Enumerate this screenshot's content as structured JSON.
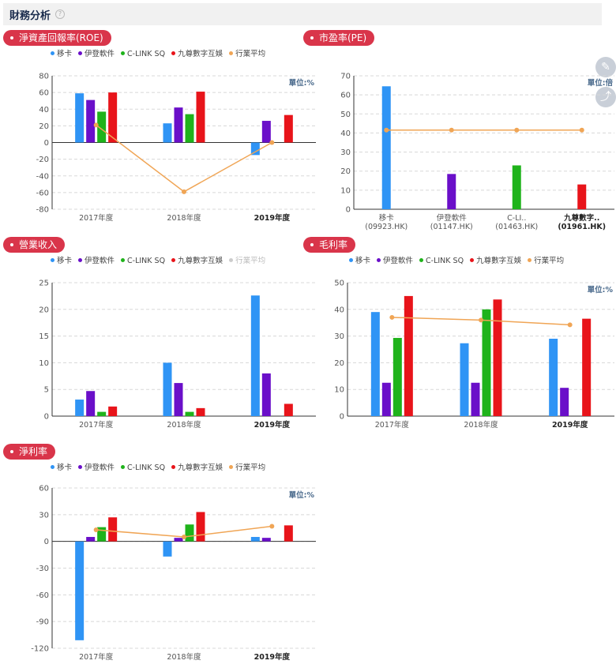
{
  "header": {
    "title": "財務分析",
    "help_icon": "question-circle-icon"
  },
  "side_buttons": {
    "edit_icon": "pen-icon",
    "share_icon": "share-icon"
  },
  "colors": {
    "移卡": "#2f94f5",
    "伊登軟件": "#6a0fc9",
    "C-LINK SQ": "#1fb31b",
    "九尊數字互娛": "#e8141a",
    "行業平均": "#f0a555"
  },
  "legend_items": [
    "移卡",
    "伊登軟件",
    "C-LINK SQ",
    "九尊數字互娛",
    "行業平均"
  ],
  "chart_data": [
    {
      "id": "roe",
      "type": "bar",
      "title": "淨資產回報率(ROE)",
      "unit": "單位:%",
      "categories": [
        "2017年度",
        "2018年度",
        "2019年度"
      ],
      "ylim": [
        -80,
        80
      ],
      "yticks": [
        80,
        60,
        40,
        20,
        0,
        -20,
        -40,
        -60,
        -80
      ],
      "series": [
        {
          "name": "移卡",
          "values": [
            59,
            23,
            -15
          ]
        },
        {
          "name": "伊登軟件",
          "values": [
            51,
            42,
            26
          ]
        },
        {
          "name": "C-LINK SQ",
          "values": [
            37,
            34,
            null
          ]
        },
        {
          "name": "九尊數字互娛",
          "values": [
            60,
            61,
            33
          ]
        }
      ],
      "line": {
        "name": "行業平均",
        "values": [
          21,
          -59,
          0
        ]
      }
    },
    {
      "id": "pe",
      "type": "bar",
      "title": "市盈率(PE)",
      "unit": "單位:倍",
      "categories": [
        "移卡\n(09923.HK)",
        "伊登軟件\n(01147.HK)",
        "C-LI..\n(01463.HK)",
        "九尊數字..\n(01961.HK)"
      ],
      "ylim": [
        0,
        70
      ],
      "yticks": [
        70,
        60,
        50,
        40,
        30,
        20,
        10,
        0
      ],
      "values": [
        64.5,
        18.5,
        23,
        13
      ],
      "line": {
        "name": "行業平均",
        "values": [
          41.5,
          41.5,
          41.5,
          41.5
        ]
      }
    },
    {
      "id": "revenue",
      "type": "bar",
      "title": "營業收入",
      "unit": "",
      "categories": [
        "2017年度",
        "2018年度",
        "2019年度"
      ],
      "ylim": [
        0,
        25
      ],
      "yticks": [
        25,
        20,
        15,
        10,
        5,
        0
      ],
      "series": [
        {
          "name": "移卡",
          "values": [
            3.1,
            10,
            22.6
          ]
        },
        {
          "name": "伊登軟件",
          "values": [
            4.7,
            6.2,
            8
          ]
        },
        {
          "name": "C-LINK SQ",
          "values": [
            0.8,
            0.8,
            null
          ]
        },
        {
          "name": "九尊數字互娛",
          "values": [
            1.8,
            1.5,
            2.3
          ]
        }
      ],
      "line": null
    },
    {
      "id": "gross",
      "type": "bar",
      "title": "毛利率",
      "unit": "單位:%",
      "categories": [
        "2017年度",
        "2018年度",
        "2019年度"
      ],
      "ylim": [
        0,
        50
      ],
      "yticks": [
        50,
        40,
        30,
        20,
        10,
        0
      ],
      "series": [
        {
          "name": "移卡",
          "values": [
            39,
            27.3,
            29
          ]
        },
        {
          "name": "伊登軟件",
          "values": [
            12.5,
            12.5,
            10.6
          ]
        },
        {
          "name": "C-LINK SQ",
          "values": [
            29.3,
            40,
            null
          ]
        },
        {
          "name": "九尊數字互娛",
          "values": [
            45,
            43.7,
            36.5
          ]
        }
      ],
      "line": {
        "name": "行業平均",
        "values": [
          37,
          36,
          34.2
        ]
      }
    },
    {
      "id": "net",
      "type": "bar",
      "title": "淨利率",
      "unit": "單位:%",
      "categories": [
        "2017年度",
        "2018年度",
        "2019年度"
      ],
      "ylim": [
        -120,
        60
      ],
      "yticks": [
        60,
        30,
        0,
        -30,
        -60,
        -90,
        -120
      ],
      "series": [
        {
          "name": "移卡",
          "values": [
            -111,
            -17,
            5
          ]
        },
        {
          "name": "伊登軟件",
          "values": [
            5,
            4,
            4
          ]
        },
        {
          "name": "C-LINK SQ",
          "values": [
            16,
            19,
            null
          ]
        },
        {
          "name": "九尊數字互娛",
          "values": [
            27,
            33,
            18
          ]
        }
      ],
      "line": {
        "name": "行業平均",
        "values": [
          13,
          5,
          17
        ]
      }
    }
  ]
}
